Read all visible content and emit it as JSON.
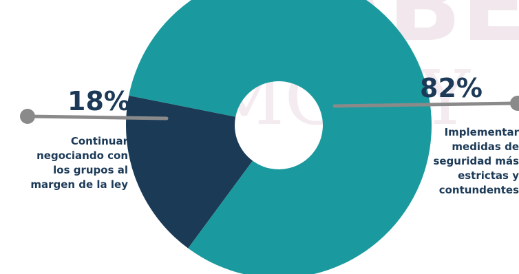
{
  "watermark": {
    "line1": "SABE",
    "line2": "IMGP Y"
  },
  "chart_data": {
    "type": "pie",
    "style": "donut",
    "slices": [
      {
        "label": "Implementar medidas de seguridad más estrictas y contundentes",
        "value": 82,
        "display": "82%",
        "color": "#1a9a9e"
      },
      {
        "label": "Continuar negociando con los grupos al margen de la ley",
        "value": 18,
        "display": "18%",
        "color": "#1b3a56"
      }
    ]
  },
  "colors": {
    "text": "#1c3a57",
    "leader": "#8a8a8a",
    "watermark": "#f1e7ec"
  },
  "callouts": {
    "left": {
      "pct": "18%",
      "lines": [
        "Continuar",
        "negociando con",
        "los grupos al",
        "margen de la ley"
      ]
    },
    "right": {
      "pct": "82%",
      "lines": [
        "Implementar",
        "medidas de",
        "seguridad más",
        "estrictas y",
        "contundentes"
      ]
    }
  }
}
